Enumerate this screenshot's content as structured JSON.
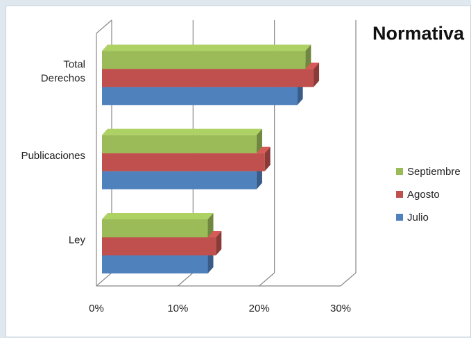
{
  "chart_data": {
    "type": "bar",
    "orientation": "horizontal",
    "style": "3d-clustered",
    "title": "Normativa",
    "categories": [
      "Ley",
      "Publicaciones",
      "Total Derechos"
    ],
    "category_lines": [
      [
        "Ley"
      ],
      [
        "Publicaciones"
      ],
      [
        "Total",
        "Derechos"
      ]
    ],
    "series": [
      {
        "name": "Julio",
        "color": "#4f81bd",
        "values": [
          13,
          19,
          24
        ]
      },
      {
        "name": "Agosto",
        "color": "#c0504d",
        "values": [
          14,
          20,
          26
        ]
      },
      {
        "name": "Septiembre",
        "color": "#9bbb59",
        "values": [
          13,
          19,
          25
        ]
      }
    ],
    "legend_order": [
      "Septiembre",
      "Agosto",
      "Julio"
    ],
    "xlim": [
      0,
      30
    ],
    "xticks": [
      "0%",
      "10%",
      "20%",
      "30%"
    ],
    "grid": true,
    "legend": "right"
  }
}
